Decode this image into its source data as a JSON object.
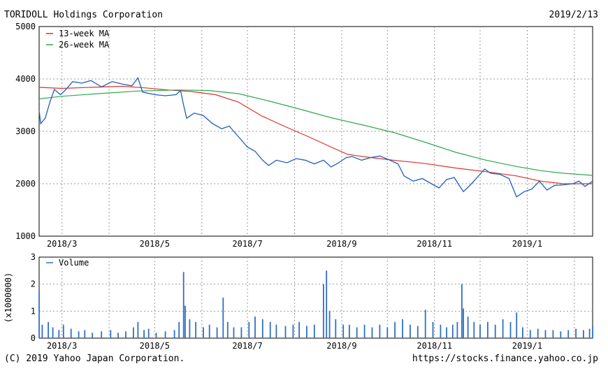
{
  "header": {
    "company": "TORIDOLL Holdings Corporation",
    "date": "2019/2/13"
  },
  "footer": {
    "copyright": "(C) 2019 Yahoo Japan Corporation.",
    "url": "https://stocks.finance.yahoo.co.jp"
  },
  "colors": {
    "price": "#1f5fbf",
    "ma13": "#d9342b",
    "ma26": "#2ea84f",
    "volume": "#2f6fc4",
    "grid": "#9a9a9a"
  },
  "chart_data": [
    {
      "type": "line",
      "title": "",
      "xlabel": "",
      "ylabel": "",
      "ylim": [
        1000,
        5000
      ],
      "y_ticks": [
        "5000",
        "4000",
        "3000",
        "2000",
        "1000"
      ],
      "x_ticks": [
        "2018/3",
        "2018/5",
        "2018/7",
        "2018/9",
        "2018/11",
        "2019/1"
      ],
      "x_tick_dates": [
        "2018-03-01",
        "2018-05-01",
        "2018-07-01",
        "2018-09-01",
        "2018-11-01",
        "2019-01-01"
      ],
      "x_range": [
        "2018-02-14",
        "2019-02-13"
      ],
      "grid": true,
      "legend": "top-left",
      "series": [
        {
          "name": "13-week MA",
          "points": [
            [
              "2018-02-14",
              3840
            ],
            [
              "2018-03-01",
              3820
            ],
            [
              "2018-03-20",
              3840
            ],
            [
              "2018-04-10",
              3860
            ],
            [
              "2018-04-25",
              3830
            ],
            [
              "2018-05-10",
              3790
            ],
            [
              "2018-05-25",
              3760
            ],
            [
              "2018-06-10",
              3700
            ],
            [
              "2018-06-25",
              3560
            ],
            [
              "2018-07-10",
              3300
            ],
            [
              "2018-07-25",
              3100
            ],
            [
              "2018-08-10",
              2900
            ],
            [
              "2018-08-25",
              2700
            ],
            [
              "2018-09-05",
              2560
            ],
            [
              "2018-09-20",
              2500
            ],
            [
              "2018-10-05",
              2450
            ],
            [
              "2018-10-25",
              2390
            ],
            [
              "2018-11-15",
              2300
            ],
            [
              "2018-12-05",
              2230
            ],
            [
              "2018-12-25",
              2150
            ],
            [
              "2019-01-10",
              2050
            ],
            [
              "2019-01-25",
              2000
            ],
            [
              "2019-02-13",
              2000
            ]
          ]
        },
        {
          "name": "26-week MA",
          "points": [
            [
              "2018-02-14",
              3620
            ],
            [
              "2018-03-01",
              3670
            ],
            [
              "2018-03-25",
              3720
            ],
            [
              "2018-04-20",
              3770
            ],
            [
              "2018-05-15",
              3790
            ],
            [
              "2018-06-05",
              3780
            ],
            [
              "2018-06-25",
              3720
            ],
            [
              "2018-07-15",
              3580
            ],
            [
              "2018-08-05",
              3420
            ],
            [
              "2018-08-25",
              3260
            ],
            [
              "2018-09-15",
              3120
            ],
            [
              "2018-10-05",
              2980
            ],
            [
              "2018-10-25",
              2800
            ],
            [
              "2018-11-15",
              2600
            ],
            [
              "2018-12-05",
              2450
            ],
            [
              "2018-12-25",
              2330
            ],
            [
              "2019-01-10",
              2250
            ],
            [
              "2019-01-25",
              2200
            ],
            [
              "2019-02-13",
              2160
            ]
          ]
        },
        {
          "name": "",
          "points": [
            [
              "2018-02-14",
              3400
            ],
            [
              "2018-02-15",
              3150
            ],
            [
              "2018-02-18",
              3250
            ],
            [
              "2018-02-21",
              3550
            ],
            [
              "2018-02-24",
              3800
            ],
            [
              "2018-02-28",
              3700
            ],
            [
              "2018-03-03",
              3780
            ],
            [
              "2018-03-08",
              3950
            ],
            [
              "2018-03-14",
              3920
            ],
            [
              "2018-03-20",
              3970
            ],
            [
              "2018-03-27",
              3850
            ],
            [
              "2018-04-03",
              3950
            ],
            [
              "2018-04-10",
              3900
            ],
            [
              "2018-04-16",
              3870
            ],
            [
              "2018-04-20",
              4020
            ],
            [
              "2018-04-23",
              3750
            ],
            [
              "2018-05-01",
              3700
            ],
            [
              "2018-05-08",
              3680
            ],
            [
              "2018-05-15",
              3700
            ],
            [
              "2018-05-18",
              3780
            ],
            [
              "2018-05-20",
              3500
            ],
            [
              "2018-05-22",
              3250
            ],
            [
              "2018-05-27",
              3350
            ],
            [
              "2018-06-02",
              3300
            ],
            [
              "2018-06-08",
              3150
            ],
            [
              "2018-06-14",
              3050
            ],
            [
              "2018-06-19",
              3100
            ],
            [
              "2018-06-25",
              2900
            ],
            [
              "2018-07-01",
              2700
            ],
            [
              "2018-07-06",
              2620
            ],
            [
              "2018-07-11",
              2450
            ],
            [
              "2018-07-15",
              2350
            ],
            [
              "2018-07-20",
              2450
            ],
            [
              "2018-07-27",
              2400
            ],
            [
              "2018-08-02",
              2480
            ],
            [
              "2018-08-08",
              2450
            ],
            [
              "2018-08-14",
              2380
            ],
            [
              "2018-08-20",
              2450
            ],
            [
              "2018-08-25",
              2320
            ],
            [
              "2018-08-30",
              2400
            ],
            [
              "2018-09-04",
              2500
            ],
            [
              "2018-09-08",
              2520
            ],
            [
              "2018-09-14",
              2450
            ],
            [
              "2018-09-20",
              2500
            ],
            [
              "2018-09-26",
              2530
            ],
            [
              "2018-10-02",
              2460
            ],
            [
              "2018-10-08",
              2380
            ],
            [
              "2018-10-12",
              2150
            ],
            [
              "2018-10-18",
              2050
            ],
            [
              "2018-10-24",
              2100
            ],
            [
              "2018-10-30",
              2000
            ],
            [
              "2018-11-04",
              1920
            ],
            [
              "2018-11-09",
              2080
            ],
            [
              "2018-11-14",
              2120
            ],
            [
              "2018-11-17",
              1980
            ],
            [
              "2018-11-20",
              1850
            ],
            [
              "2018-11-24",
              1960
            ],
            [
              "2018-11-30",
              2150
            ],
            [
              "2018-12-04",
              2280
            ],
            [
              "2018-12-08",
              2200
            ],
            [
              "2018-12-14",
              2180
            ],
            [
              "2018-12-20",
              2100
            ],
            [
              "2018-12-25",
              1750
            ],
            [
              "2018-12-30",
              1850
            ],
            [
              "2019-01-04",
              1900
            ],
            [
              "2019-01-09",
              2050
            ],
            [
              "2019-01-14",
              1880
            ],
            [
              "2019-01-19",
              1970
            ],
            [
              "2019-01-25",
              1980
            ],
            [
              "2019-01-31",
              2000
            ],
            [
              "2019-02-04",
              2050
            ],
            [
              "2019-02-08",
              1950
            ],
            [
              "2019-02-13",
              2050
            ]
          ]
        }
      ]
    },
    {
      "type": "bar",
      "title": "",
      "ylabel": "(x1000000)",
      "ylim": [
        0,
        3
      ],
      "y_ticks": [
        "3",
        "2",
        "1",
        "0"
      ],
      "x_ticks": [
        "2018/3",
        "2018/5",
        "2018/7",
        "2018/9",
        "2018/11",
        "2019/1"
      ],
      "grid": true,
      "legend": "top-left",
      "series": [
        {
          "name": "Volume",
          "points": [
            [
              "2018-02-14",
              1.7
            ],
            [
              "2018-02-16",
              0.5
            ],
            [
              "2018-02-20",
              0.6
            ],
            [
              "2018-02-23",
              0.4
            ],
            [
              "2018-02-27",
              0.3
            ],
            [
              "2018-03-02",
              0.5
            ],
            [
              "2018-03-07",
              0.35
            ],
            [
              "2018-03-12",
              0.25
            ],
            [
              "2018-03-16",
              0.3
            ],
            [
              "2018-03-21",
              0.2
            ],
            [
              "2018-03-27",
              0.25
            ],
            [
              "2018-04-02",
              0.3
            ],
            [
              "2018-04-07",
              0.2
            ],
            [
              "2018-04-12",
              0.25
            ],
            [
              "2018-04-17",
              0.4
            ],
            [
              "2018-04-20",
              0.6
            ],
            [
              "2018-04-24",
              0.3
            ],
            [
              "2018-04-27",
              0.35
            ],
            [
              "2018-05-02",
              0.2
            ],
            [
              "2018-05-08",
              0.25
            ],
            [
              "2018-05-14",
              0.3
            ],
            [
              "2018-05-17",
              0.6
            ],
            [
              "2018-05-20",
              2.45
            ],
            [
              "2018-05-21",
              1.2
            ],
            [
              "2018-05-24",
              0.7
            ],
            [
              "2018-05-28",
              0.6
            ],
            [
              "2018-06-02",
              0.4
            ],
            [
              "2018-06-06",
              0.5
            ],
            [
              "2018-06-11",
              0.4
            ],
            [
              "2018-06-15",
              1.5
            ],
            [
              "2018-06-18",
              0.6
            ],
            [
              "2018-06-22",
              0.4
            ],
            [
              "2018-06-27",
              0.4
            ],
            [
              "2018-07-02",
              0.6
            ],
            [
              "2018-07-06",
              0.8
            ],
            [
              "2018-07-11",
              0.7
            ],
            [
              "2018-07-16",
              0.6
            ],
            [
              "2018-07-20",
              0.5
            ],
            [
              "2018-07-26",
              0.45
            ],
            [
              "2018-07-31",
              0.5
            ],
            [
              "2018-08-04",
              0.6
            ],
            [
              "2018-08-09",
              0.45
            ],
            [
              "2018-08-14",
              0.5
            ],
            [
              "2018-08-20",
              2.0
            ],
            [
              "2018-08-22",
              2.5
            ],
            [
              "2018-08-24",
              1.0
            ],
            [
              "2018-08-28",
              0.7
            ],
            [
              "2018-09-02",
              0.5
            ],
            [
              "2018-09-06",
              0.5
            ],
            [
              "2018-09-11",
              0.4
            ],
            [
              "2018-09-16",
              0.5
            ],
            [
              "2018-09-21",
              0.4
            ],
            [
              "2018-09-26",
              0.5
            ],
            [
              "2018-10-01",
              0.4
            ],
            [
              "2018-10-06",
              0.6
            ],
            [
              "2018-10-11",
              0.7
            ],
            [
              "2018-10-16",
              0.5
            ],
            [
              "2018-10-21",
              0.45
            ],
            [
              "2018-10-26",
              1.05
            ],
            [
              "2018-10-31",
              0.6
            ],
            [
              "2018-11-05",
              0.5
            ],
            [
              "2018-11-09",
              0.4
            ],
            [
              "2018-11-13",
              0.5
            ],
            [
              "2018-11-16",
              0.6
            ],
            [
              "2018-11-19",
              2.0
            ],
            [
              "2018-11-20",
              1.1
            ],
            [
              "2018-11-23",
              0.8
            ],
            [
              "2018-11-27",
              0.6
            ],
            [
              "2018-12-01",
              0.5
            ],
            [
              "2018-12-06",
              0.6
            ],
            [
              "2018-12-11",
              0.5
            ],
            [
              "2018-12-16",
              0.7
            ],
            [
              "2018-12-21",
              0.6
            ],
            [
              "2018-12-25",
              0.95
            ],
            [
              "2018-12-29",
              0.4
            ],
            [
              "2019-01-03",
              0.3
            ],
            [
              "2019-01-08",
              0.35
            ],
            [
              "2019-01-13",
              0.3
            ],
            [
              "2019-01-18",
              0.3
            ],
            [
              "2019-01-23",
              0.25
            ],
            [
              "2019-01-28",
              0.3
            ],
            [
              "2019-02-02",
              0.35
            ],
            [
              "2019-02-07",
              0.3
            ],
            [
              "2019-02-11",
              0.35
            ],
            [
              "2019-02-13",
              0.45
            ]
          ]
        }
      ]
    }
  ]
}
